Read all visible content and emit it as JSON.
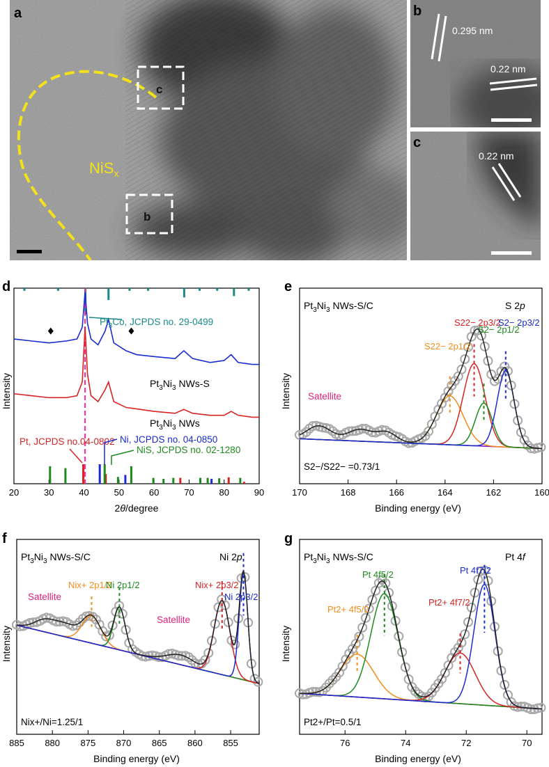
{
  "panel_a": {
    "letter": "a",
    "region_label": "NiS",
    "region_label_sub": "x",
    "box_b": "b",
    "box_c": "c",
    "colors": {
      "outline": "#f3e21a",
      "box": "#ffffff"
    }
  },
  "panel_b": {
    "letter": "b",
    "spacing_1": "0.295 nm",
    "spacing_2": "0.22 nm"
  },
  "panel_c": {
    "letter": "c",
    "spacing_1": "0.22 nm"
  },
  "chart_data": [
    {
      "panel": "d",
      "type": "line",
      "title": "",
      "xlabel": "2θ/degree",
      "ylabel": "Intensity",
      "xlim": [
        20,
        90
      ],
      "xticks": [
        "20",
        "30",
        "40",
        "50",
        "60",
        "70",
        "80",
        "90"
      ],
      "series": [
        {
          "name": "Pt3Ni3 NWs-S",
          "color": "#1a2bd0",
          "x": [
            20,
            25,
            30,
            35,
            38,
            39.5,
            40.3,
            41,
            42,
            44,
            46,
            47,
            48.5,
            52,
            55,
            60,
            66,
            68.5,
            71,
            76,
            80,
            82,
            84,
            88,
            90
          ],
          "y": [
            0.74,
            0.73,
            0.72,
            0.73,
            0.74,
            0.8,
            0.98,
            0.82,
            0.74,
            0.71,
            0.78,
            0.84,
            0.72,
            0.68,
            0.66,
            0.65,
            0.64,
            0.68,
            0.64,
            0.62,
            0.63,
            0.66,
            0.62,
            0.61,
            0.61
          ]
        },
        {
          "name": "Pt3Ni3 NWs",
          "color": "#d62323",
          "x": [
            20,
            25,
            30,
            35,
            38,
            39.5,
            40.3,
            41,
            42,
            44,
            46,
            47,
            48.5,
            52,
            56,
            60,
            66,
            68.5,
            71,
            76,
            80,
            82,
            84,
            88,
            90
          ],
          "y": [
            0.46,
            0.45,
            0.44,
            0.44,
            0.45,
            0.52,
            0.8,
            0.56,
            0.45,
            0.42,
            0.48,
            0.52,
            0.42,
            0.39,
            0.38,
            0.37,
            0.36,
            0.38,
            0.36,
            0.35,
            0.35,
            0.37,
            0.35,
            0.34,
            0.34
          ]
        }
      ],
      "reference_lines": [
        {
          "name": "Pt3Co, JCPDS no. 29-0499",
          "color": "#1a8a8a",
          "position": "top",
          "x": [
            23.0,
            32.6,
            40.4,
            47.0,
            53.0,
            58.3,
            68.6,
            73.0,
            78.0,
            82.8,
            87.0
          ],
          "h": [
            0.1,
            0.1,
            1.0,
            0.45,
            0.1,
            0.1,
            0.35,
            0.1,
            0.1,
            0.3,
            0.1
          ]
        },
        {
          "name": "Pt, JCPDS no.04-0802",
          "color": "#d62323",
          "position": "bottom",
          "x": [
            39.8,
            46.2,
            67.5,
            81.3,
            85.7
          ],
          "h": [
            1.0,
            0.5,
            0.3,
            0.33,
            0.1
          ]
        },
        {
          "name": "Ni, JCPDS no. 04-0850",
          "color": "#1a2bd0",
          "position": "bottom",
          "x": [
            44.5,
            51.8,
            76.4
          ],
          "h": [
            1.0,
            0.45,
            0.25
          ]
        },
        {
          "name": "NiS, JCPDS no. 02-1280",
          "color": "#1e8a1e",
          "position": "bottom",
          "x": [
            30.3,
            34.7,
            45.9,
            49.7,
            53.5,
            59.8,
            62.7,
            65.5,
            73.2,
            75.3,
            78.6,
            84.6
          ],
          "h": [
            0.9,
            0.8,
            1.0,
            0.35,
            0.9,
            0.3,
            0.25,
            0.3,
            0.3,
            0.3,
            0.28,
            0.3
          ]
        }
      ],
      "annotations": [
        "Pt3Co, JCPDS no. 29-0499",
        "Pt3Ni3 NWs-S",
        "Pt3Ni3 NWs",
        "Pt, JCPDS no.04-0802",
        "Ni, JCPDS no. 04-0850",
        "NiS, JCPDS no. 02-1280"
      ],
      "markers": [
        {
          "x": 30.5,
          "shape": "diamond"
        },
        {
          "x": 53.5,
          "shape": "diamond"
        }
      ],
      "dashed_line_x": 40.3
    },
    {
      "panel": "e",
      "type": "line",
      "xlabel": "Binding energy (eV)",
      "ylabel": "Intensity",
      "xlim": [
        170,
        160
      ],
      "xticks": [
        "170",
        "168",
        "166",
        "164",
        "162",
        "160"
      ],
      "sample": "Pt3Ni3 NWs-S/C",
      "core_level": "S 2p",
      "ratio": "S2−/S22− =0.73/1",
      "peaks": [
        {
          "label": "S22− 2p1/2",
          "center": 163.8,
          "color": "#f28c1a"
        },
        {
          "label": "S22− 2p3/2",
          "center": 162.8,
          "color": "#d62323"
        },
        {
          "label": "S2− 2p1/2",
          "center": 162.4,
          "color": "#1e8a1e"
        },
        {
          "label": "S2− 2p3/2",
          "center": 161.5,
          "color": "#1a2bd0"
        }
      ],
      "satellite_label": "Satellite"
    },
    {
      "panel": "f",
      "type": "line",
      "xlabel": "Binding energy (eV)",
      "ylabel": "Intensity",
      "xlim": [
        885,
        851
      ],
      "xticks": [
        "885",
        "880",
        "875",
        "870",
        "865",
        "860",
        "855"
      ],
      "sample": "Pt3Ni3 NWs-S/C",
      "core_level": "Ni 2p",
      "ratio": "Nix+/Ni=1.25/1",
      "peaks": [
        {
          "label": "Nix+ 2p1/2",
          "center": 874.5,
          "color": "#f28c1a"
        },
        {
          "label": "Ni 2p1/2",
          "center": 870.6,
          "color": "#1e8a1e"
        },
        {
          "label": "Nix+ 2p3/2",
          "center": 856.2,
          "color": "#d62323"
        },
        {
          "label": "Ni 2p3/2",
          "center": 853.2,
          "color": "#1a2bd0"
        }
      ],
      "satellite_label": "Satellite"
    },
    {
      "panel": "g",
      "type": "line",
      "xlabel": "Binding energy (eV)",
      "ylabel": "Intensity",
      "xlim": [
        77.5,
        69.5
      ],
      "xticks": [
        "76",
        "74",
        "72",
        "70"
      ],
      "sample": "Pt3Ni3 NWs-S/C",
      "core_level": "Pt 4f",
      "ratio": "Pt2+/Pt=0.5/1",
      "peaks": [
        {
          "label": "Pt2+ 4f5/2",
          "center": 75.6,
          "color": "#f28c1a"
        },
        {
          "label": "Pt 4f5/2",
          "center": 74.7,
          "color": "#1e8a1e"
        },
        {
          "label": "Pt2+ 4f7/2",
          "center": 72.2,
          "color": "#d62323"
        },
        {
          "label": "Pt 4f7/2",
          "center": 71.4,
          "color": "#1a2bd0"
        }
      ]
    }
  ],
  "labels": {
    "d": "d",
    "e": "e",
    "f": "f",
    "g": "g",
    "pt3co": "Pt",
    "pt3co_sub": "3",
    "pt3co_rest": "Co, JCPDS no. 29-0499",
    "nws_s_a": "Pt",
    "nws_s_b": "3",
    "nws_s_c": "Ni",
    "nws_s_d": "3",
    "nws_s_e": " NWs-S",
    "nws_a": "Pt",
    "nws_b": "3",
    "nws_c": "Ni",
    "nws_d": "3",
    "nws_e": " NWs",
    "pt_ref": "Pt, JCPDS no.04-0802",
    "ni_ref": "Ni, JCPDS no. 04-0850",
    "nis_ref": "NiS, JCPDS no. 02-1280",
    "sample_a": "Pt",
    "sample_b": "3",
    "sample_c": "Ni",
    "sample_d": "3",
    "sample_e": " NWs-S/C",
    "s2p_a": "S 2",
    "s2p_b": "p",
    "ni2p_a": "Ni 2",
    "ni2p_b": "p",
    "pt4f_a": "Pt 4",
    "pt4f_b": "f",
    "satellite": "Satellite",
    "intensity": "Intensity",
    "be": "Binding energy (eV)",
    "theta_a": "2",
    "theta_b": "θ",
    "theta_c": "/degree"
  }
}
